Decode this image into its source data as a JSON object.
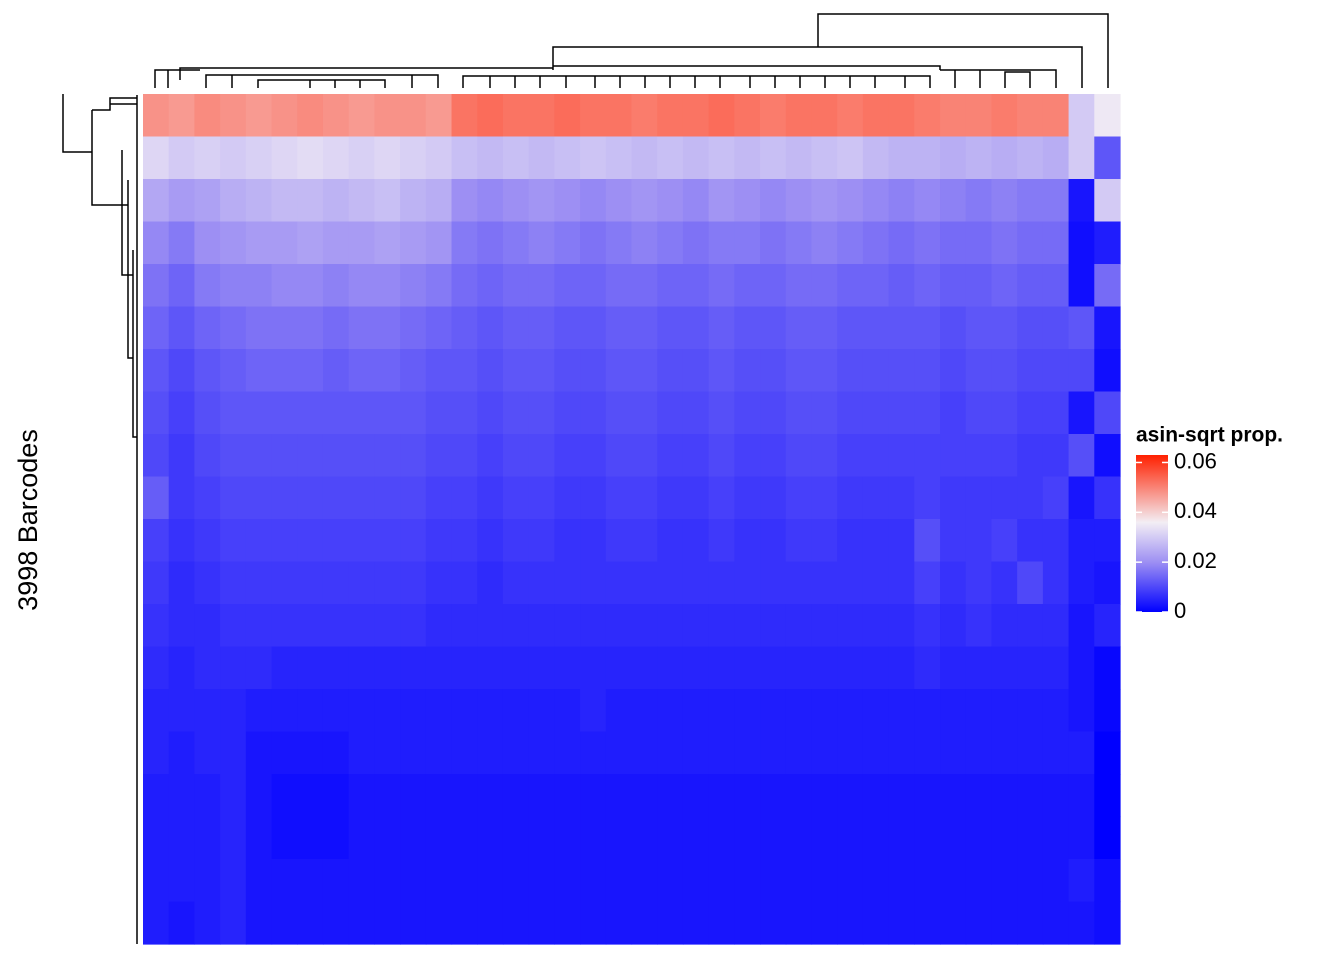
{
  "chart_data": {
    "type": "heatmap",
    "y_label": "3998 Barcodes",
    "legend_title": "asin-sqrt prop.",
    "clim": [
      0,
      0.063
    ],
    "cticks": [
      0,
      0.02,
      0.04,
      0.06
    ],
    "colorscale": [
      [
        0,
        "#0000ff"
      ],
      [
        0.02,
        "#9d8ff3"
      ],
      [
        0.036,
        "#f3eef4"
      ],
      [
        0.063,
        "#ff2000"
      ]
    ],
    "values": [
      [
        0.048,
        0.047,
        0.049,
        0.048,
        0.047,
        0.048,
        0.049,
        0.048,
        0.047,
        0.048,
        0.048,
        0.047,
        0.052,
        0.053,
        0.052,
        0.052,
        0.053,
        0.052,
        0.052,
        0.051,
        0.052,
        0.052,
        0.053,
        0.052,
        0.051,
        0.052,
        0.052,
        0.051,
        0.052,
        0.052,
        0.051,
        0.05,
        0.05,
        0.051,
        0.05,
        0.05,
        0.03,
        0.035
      ],
      [
        0.032,
        0.03,
        0.031,
        0.03,
        0.031,
        0.032,
        0.033,
        0.032,
        0.031,
        0.032,
        0.031,
        0.03,
        0.028,
        0.027,
        0.028,
        0.027,
        0.028,
        0.029,
        0.028,
        0.027,
        0.028,
        0.027,
        0.028,
        0.027,
        0.028,
        0.027,
        0.028,
        0.029,
        0.027,
        0.026,
        0.026,
        0.025,
        0.026,
        0.025,
        0.026,
        0.025,
        0.03,
        0.012
      ],
      [
        0.024,
        0.022,
        0.023,
        0.025,
        0.026,
        0.027,
        0.027,
        0.026,
        0.027,
        0.028,
        0.026,
        0.025,
        0.02,
        0.019,
        0.02,
        0.021,
        0.02,
        0.019,
        0.02,
        0.021,
        0.02,
        0.019,
        0.021,
        0.02,
        0.019,
        0.02,
        0.021,
        0.02,
        0.019,
        0.018,
        0.019,
        0.018,
        0.017,
        0.018,
        0.017,
        0.017,
        0.003,
        0.03
      ],
      [
        0.019,
        0.017,
        0.02,
        0.021,
        0.022,
        0.022,
        0.023,
        0.022,
        0.022,
        0.023,
        0.022,
        0.021,
        0.017,
        0.016,
        0.017,
        0.018,
        0.017,
        0.016,
        0.017,
        0.018,
        0.017,
        0.016,
        0.017,
        0.017,
        0.016,
        0.017,
        0.018,
        0.017,
        0.016,
        0.015,
        0.016,
        0.015,
        0.015,
        0.016,
        0.015,
        0.015,
        0.002,
        0.004
      ],
      [
        0.016,
        0.014,
        0.017,
        0.018,
        0.018,
        0.019,
        0.019,
        0.018,
        0.019,
        0.019,
        0.018,
        0.017,
        0.015,
        0.014,
        0.015,
        0.015,
        0.014,
        0.014,
        0.015,
        0.015,
        0.014,
        0.014,
        0.015,
        0.014,
        0.014,
        0.015,
        0.015,
        0.014,
        0.014,
        0.013,
        0.014,
        0.013,
        0.013,
        0.014,
        0.013,
        0.013,
        0.002,
        0.015
      ],
      [
        0.014,
        0.012,
        0.014,
        0.015,
        0.016,
        0.016,
        0.016,
        0.015,
        0.016,
        0.016,
        0.015,
        0.014,
        0.013,
        0.012,
        0.013,
        0.013,
        0.012,
        0.012,
        0.013,
        0.013,
        0.012,
        0.012,
        0.013,
        0.012,
        0.012,
        0.013,
        0.013,
        0.012,
        0.012,
        0.012,
        0.012,
        0.011,
        0.012,
        0.012,
        0.011,
        0.011,
        0.012,
        0.003
      ],
      [
        0.012,
        0.01,
        0.012,
        0.013,
        0.014,
        0.014,
        0.014,
        0.013,
        0.014,
        0.014,
        0.013,
        0.012,
        0.012,
        0.011,
        0.012,
        0.012,
        0.011,
        0.011,
        0.012,
        0.012,
        0.011,
        0.011,
        0.012,
        0.011,
        0.011,
        0.012,
        0.012,
        0.011,
        0.011,
        0.011,
        0.011,
        0.01,
        0.011,
        0.011,
        0.01,
        0.01,
        0.01,
        0.002
      ],
      [
        0.011,
        0.009,
        0.011,
        0.012,
        0.012,
        0.012,
        0.012,
        0.012,
        0.012,
        0.012,
        0.012,
        0.011,
        0.011,
        0.01,
        0.011,
        0.011,
        0.01,
        0.01,
        0.011,
        0.011,
        0.01,
        0.01,
        0.011,
        0.01,
        0.01,
        0.011,
        0.011,
        0.01,
        0.01,
        0.01,
        0.01,
        0.009,
        0.01,
        0.01,
        0.009,
        0.009,
        0.003,
        0.01
      ],
      [
        0.01,
        0.008,
        0.01,
        0.011,
        0.011,
        0.011,
        0.011,
        0.011,
        0.011,
        0.011,
        0.011,
        0.01,
        0.01,
        0.009,
        0.01,
        0.01,
        0.009,
        0.009,
        0.01,
        0.01,
        0.009,
        0.009,
        0.01,
        0.009,
        0.009,
        0.01,
        0.01,
        0.009,
        0.009,
        0.009,
        0.009,
        0.009,
        0.009,
        0.009,
        0.008,
        0.008,
        0.011,
        0.002
      ],
      [
        0.013,
        0.008,
        0.009,
        0.01,
        0.01,
        0.01,
        0.01,
        0.01,
        0.01,
        0.01,
        0.01,
        0.009,
        0.009,
        0.008,
        0.009,
        0.009,
        0.008,
        0.008,
        0.009,
        0.009,
        0.008,
        0.008,
        0.009,
        0.008,
        0.008,
        0.009,
        0.009,
        0.008,
        0.008,
        0.008,
        0.009,
        0.008,
        0.008,
        0.008,
        0.008,
        0.009,
        0.003,
        0.007
      ],
      [
        0.009,
        0.007,
        0.008,
        0.009,
        0.009,
        0.009,
        0.009,
        0.009,
        0.009,
        0.009,
        0.009,
        0.008,
        0.008,
        0.007,
        0.008,
        0.008,
        0.007,
        0.007,
        0.008,
        0.008,
        0.007,
        0.007,
        0.008,
        0.007,
        0.007,
        0.008,
        0.008,
        0.007,
        0.007,
        0.007,
        0.011,
        0.008,
        0.008,
        0.009,
        0.007,
        0.007,
        0.004,
        0.004
      ],
      [
        0.008,
        0.006,
        0.007,
        0.008,
        0.008,
        0.008,
        0.008,
        0.008,
        0.008,
        0.008,
        0.008,
        0.007,
        0.007,
        0.006,
        0.007,
        0.007,
        0.007,
        0.007,
        0.007,
        0.007,
        0.007,
        0.007,
        0.007,
        0.007,
        0.007,
        0.007,
        0.007,
        0.007,
        0.007,
        0.007,
        0.009,
        0.007,
        0.008,
        0.007,
        0.01,
        0.007,
        0.004,
        0.003
      ],
      [
        0.007,
        0.006,
        0.006,
        0.007,
        0.007,
        0.007,
        0.007,
        0.007,
        0.007,
        0.007,
        0.007,
        0.006,
        0.006,
        0.006,
        0.006,
        0.006,
        0.006,
        0.006,
        0.006,
        0.006,
        0.006,
        0.006,
        0.006,
        0.006,
        0.006,
        0.006,
        0.006,
        0.006,
        0.006,
        0.006,
        0.007,
        0.006,
        0.007,
        0.006,
        0.006,
        0.006,
        0.003,
        0.005
      ],
      [
        0.006,
        0.005,
        0.006,
        0.006,
        0.006,
        0.005,
        0.005,
        0.005,
        0.005,
        0.005,
        0.005,
        0.005,
        0.005,
        0.005,
        0.005,
        0.005,
        0.005,
        0.005,
        0.005,
        0.005,
        0.005,
        0.005,
        0.005,
        0.005,
        0.005,
        0.005,
        0.005,
        0.005,
        0.005,
        0.005,
        0.006,
        0.005,
        0.005,
        0.005,
        0.005,
        0.005,
        0.003,
        0.001
      ],
      [
        0.005,
        0.005,
        0.005,
        0.005,
        0.004,
        0.004,
        0.004,
        0.004,
        0.004,
        0.004,
        0.004,
        0.004,
        0.004,
        0.004,
        0.004,
        0.004,
        0.004,
        0.005,
        0.004,
        0.004,
        0.004,
        0.004,
        0.004,
        0.004,
        0.004,
        0.004,
        0.004,
        0.004,
        0.004,
        0.004,
        0.004,
        0.004,
        0.004,
        0.004,
        0.004,
        0.004,
        0.003,
        0.001
      ],
      [
        0.005,
        0.004,
        0.005,
        0.005,
        0.003,
        0.003,
        0.003,
        0.003,
        0.004,
        0.004,
        0.004,
        0.004,
        0.004,
        0.004,
        0.004,
        0.004,
        0.004,
        0.004,
        0.004,
        0.004,
        0.004,
        0.004,
        0.004,
        0.004,
        0.004,
        0.004,
        0.004,
        0.004,
        0.004,
        0.004,
        0.004,
        0.004,
        0.004,
        0.004,
        0.004,
        0.004,
        0.004,
        0.0
      ],
      [
        0.004,
        0.004,
        0.004,
        0.005,
        0.003,
        0.002,
        0.002,
        0.002,
        0.003,
        0.003,
        0.003,
        0.003,
        0.003,
        0.003,
        0.003,
        0.003,
        0.003,
        0.003,
        0.003,
        0.003,
        0.003,
        0.003,
        0.003,
        0.003,
        0.003,
        0.003,
        0.003,
        0.003,
        0.003,
        0.003,
        0.003,
        0.003,
        0.003,
        0.003,
        0.003,
        0.003,
        0.003,
        0.0
      ],
      [
        0.004,
        0.004,
        0.004,
        0.005,
        0.003,
        0.002,
        0.002,
        0.002,
        0.003,
        0.003,
        0.003,
        0.003,
        0.003,
        0.003,
        0.003,
        0.003,
        0.003,
        0.003,
        0.003,
        0.003,
        0.003,
        0.003,
        0.003,
        0.003,
        0.003,
        0.003,
        0.003,
        0.003,
        0.003,
        0.003,
        0.003,
        0.003,
        0.003,
        0.003,
        0.003,
        0.003,
        0.003,
        0.0
      ],
      [
        0.004,
        0.004,
        0.004,
        0.005,
        0.003,
        0.003,
        0.003,
        0.003,
        0.003,
        0.003,
        0.003,
        0.003,
        0.003,
        0.003,
        0.003,
        0.003,
        0.003,
        0.003,
        0.003,
        0.003,
        0.003,
        0.003,
        0.003,
        0.003,
        0.003,
        0.003,
        0.003,
        0.003,
        0.003,
        0.003,
        0.003,
        0.003,
        0.003,
        0.003,
        0.003,
        0.003,
        0.004,
        0.002
      ],
      [
        0.004,
        0.003,
        0.004,
        0.005,
        0.003,
        0.003,
        0.003,
        0.003,
        0.003,
        0.003,
        0.003,
        0.003,
        0.003,
        0.003,
        0.003,
        0.003,
        0.003,
        0.003,
        0.003,
        0.003,
        0.003,
        0.003,
        0.003,
        0.003,
        0.003,
        0.003,
        0.003,
        0.003,
        0.003,
        0.003,
        0.003,
        0.003,
        0.003,
        0.003,
        0.003,
        0.003,
        0.003,
        0.002
      ]
    ]
  }
}
